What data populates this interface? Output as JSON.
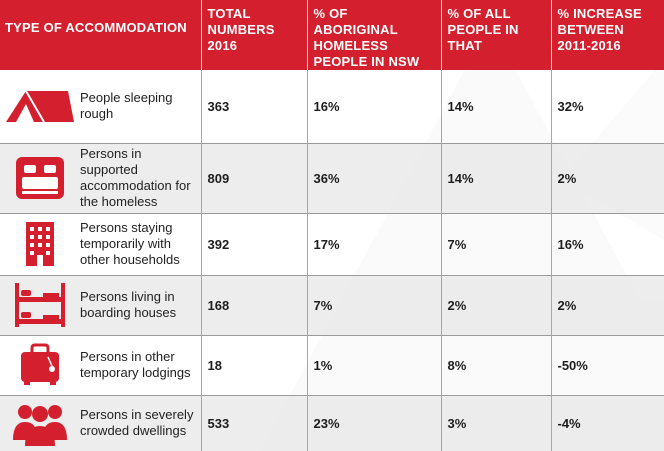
{
  "colors": {
    "header_bg": "#d4202e",
    "icon_red": "#d4202e",
    "row_alt": "#eaeaea"
  },
  "headers": [
    "TYPE OF ACCOMMODATION",
    "TOTAL NUMBERS 2016",
    "% OF ABORIGINAL HOMELESS PEOPLE IN NSW",
    "% OF ALL PEOPLE IN THAT",
    "% INCREASE BETWEEN 2011-2016"
  ],
  "rows": [
    {
      "icon": "tent-icon",
      "label": "People sleeping rough",
      "total": "363",
      "aboriginal_pct": "16%",
      "all_pct": "14%",
      "increase": "32%"
    },
    {
      "icon": "bed-icon",
      "label": "Persons in supported accommodation for the homeless",
      "total": "809",
      "aboriginal_pct": "36%",
      "all_pct": "14%",
      "increase": "2%"
    },
    {
      "icon": "apartment-building-icon",
      "label": "Persons staying temporarily with other households",
      "total": "392",
      "aboriginal_pct": "17%",
      "all_pct": "7%",
      "increase": "16%"
    },
    {
      "icon": "bunk-bed-icon",
      "label": "Persons living in boarding houses",
      "total": "168",
      "aboriginal_pct": "7%",
      "all_pct": "2%",
      "increase": "2%"
    },
    {
      "icon": "suitcase-icon",
      "label": "Persons in other temporary lodgings",
      "total": "18",
      "aboriginal_pct": "1%",
      "all_pct": "8%",
      "increase": "-50%"
    },
    {
      "icon": "group-people-icon",
      "label": "Persons in severely crowded dwellings",
      "total": "533",
      "aboriginal_pct": "23%",
      "all_pct": "3%",
      "increase": "-4%"
    }
  ]
}
